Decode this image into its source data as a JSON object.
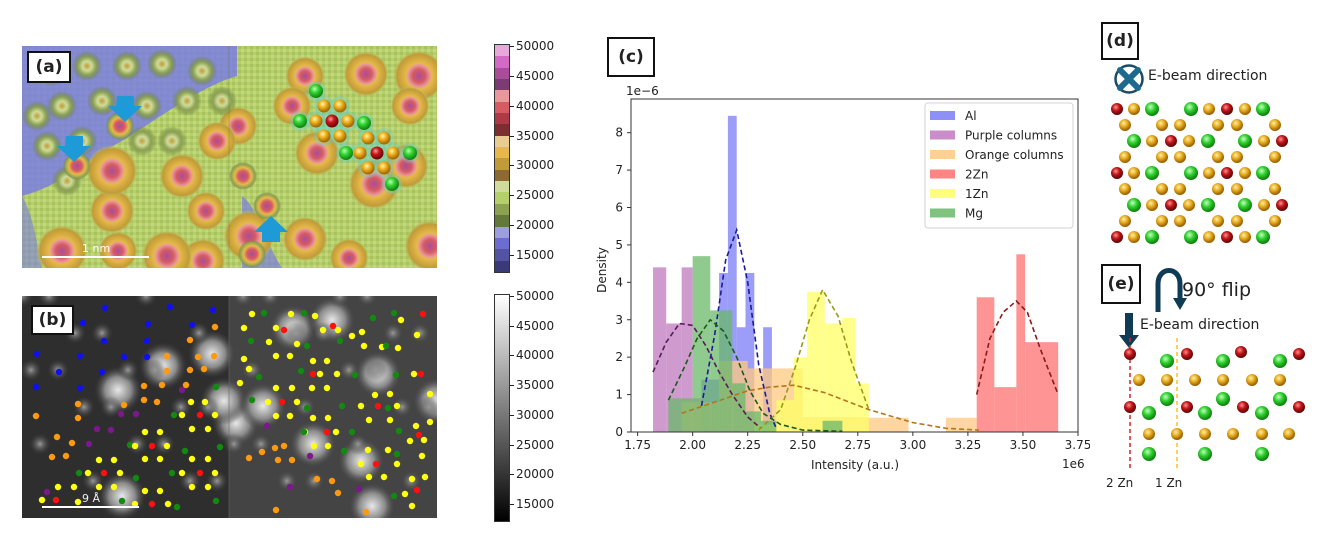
{
  "panels": {
    "a": {
      "label": "(a)",
      "scalebar": "1 nm",
      "colorbar_ticks": [
        "50000",
        "45000",
        "40000",
        "35000",
        "30000",
        "25000",
        "20000",
        "15000"
      ],
      "colormap": [
        "#e7a9d9",
        "#d36bc6",
        "#a94c9a",
        "#7b3b73",
        "#e8979b",
        "#d65b62",
        "#ad3a44",
        "#7d2e30",
        "#e8cc91",
        "#e7b94a",
        "#c09b37",
        "#8c6a32",
        "#cfdc9b",
        "#b5cf6b",
        "#8ca252",
        "#637939",
        "#9c9ede",
        "#6b6ecf",
        "#5254a3",
        "#393b79"
      ]
    },
    "b": {
      "label": "(b)",
      "scalebar": "9 Å",
      "colorbar_ticks": [
        "50000",
        "45000",
        "40000",
        "35000",
        "30000",
        "25000",
        "20000",
        "15000"
      ]
    },
    "c": {
      "label": "(c)"
    },
    "d": {
      "label": "(d)",
      "beam_label": "E-beam direction"
    },
    "e": {
      "label": "(e)",
      "flip_label": "90° flip",
      "beam_label": "E-beam direction",
      "line_labels": [
        "2 Zn",
        "1 Zn"
      ]
    }
  },
  "chart_data": {
    "type": "bar",
    "title": "",
    "xlabel": "Intensity (a.u.)",
    "ylabel": "Density",
    "x_multiplier": "1e6",
    "y_multiplier": "1e−6",
    "xlim": [
      1.72,
      3.75
    ],
    "ylim": [
      0,
      8.9
    ],
    "xticks": [
      "1.75",
      "2.00",
      "2.25",
      "2.50",
      "2.75",
      "3.00",
      "3.25",
      "3.50",
      "3.75"
    ],
    "yticks": [
      "0",
      "1",
      "2",
      "3",
      "4",
      "5",
      "6",
      "7",
      "8"
    ],
    "legend_position": "top-right",
    "series": [
      {
        "name": "Al",
        "color": "#7b7bf7",
        "fit_color": "#1a1aa0",
        "bins": [
          [
            2.04,
            2.12,
            1.4
          ],
          [
            2.12,
            2.16,
            4.25
          ],
          [
            2.16,
            2.2,
            8.45
          ],
          [
            2.2,
            2.24,
            2.8
          ],
          [
            2.24,
            2.28,
            4.25
          ],
          [
            2.32,
            2.36,
            2.8
          ]
        ],
        "fit": [
          [
            2.04,
            0.7
          ],
          [
            2.1,
            2.6
          ],
          [
            2.15,
            4.6
          ],
          [
            2.2,
            5.4
          ],
          [
            2.25,
            4.0
          ],
          [
            2.3,
            1.8
          ],
          [
            2.35,
            0.5
          ],
          [
            2.38,
            0.1
          ]
        ]
      },
      {
        "name": "Purple columns",
        "color": "#bf7abf",
        "fit_color": "#5a1a5a",
        "bins": [
          [
            1.82,
            1.88,
            4.4
          ],
          [
            1.88,
            1.95,
            2.9
          ],
          [
            1.95,
            2.0,
            4.4
          ],
          [
            2.0,
            2.05,
            0.9
          ]
        ],
        "fit": [
          [
            1.82,
            1.6
          ],
          [
            1.88,
            2.4
          ],
          [
            1.94,
            2.9
          ],
          [
            2.0,
            2.85
          ],
          [
            2.06,
            2.3
          ],
          [
            2.12,
            1.6
          ],
          [
            2.18,
            1.0
          ],
          [
            2.25,
            0.4
          ],
          [
            2.31,
            0.1
          ]
        ]
      },
      {
        "name": "Orange columns",
        "color": "#ffc880",
        "fit_color": "#b8741a",
        "bins": [
          [
            1.95,
            2.12,
            0.8
          ],
          [
            2.12,
            2.25,
            1.9
          ],
          [
            2.25,
            2.5,
            1.7
          ],
          [
            2.5,
            2.8,
            0.4
          ],
          [
            2.8,
            2.98,
            0.38
          ],
          [
            3.15,
            3.29,
            0.38
          ]
        ],
        "fit": [
          [
            1.95,
            0.5
          ],
          [
            2.1,
            0.8
          ],
          [
            2.25,
            1.1
          ],
          [
            2.35,
            1.2
          ],
          [
            2.46,
            1.25
          ],
          [
            2.6,
            1.05
          ],
          [
            2.8,
            0.6
          ],
          [
            3.0,
            0.25
          ],
          [
            3.15,
            0.1
          ],
          [
            3.3,
            0.05
          ]
        ]
      },
      {
        "name": "2Zn",
        "color": "#ff7070",
        "fit_color": "#8b1a1a",
        "bins": [
          [
            3.29,
            3.37,
            3.6
          ],
          [
            3.37,
            3.47,
            1.2
          ],
          [
            3.47,
            3.51,
            4.75
          ],
          [
            3.51,
            3.66,
            2.4
          ]
        ],
        "fit": [
          [
            3.29,
            1.0
          ],
          [
            3.35,
            2.5
          ],
          [
            3.41,
            3.2
          ],
          [
            3.47,
            3.5
          ],
          [
            3.52,
            3.2
          ],
          [
            3.58,
            2.2
          ],
          [
            3.66,
            1.0
          ]
        ]
      },
      {
        "name": "1Zn",
        "color": "#ffff66",
        "fit_color": "#9a9a18",
        "bins": [
          [
            2.28,
            2.38,
            0.2
          ],
          [
            2.38,
            2.46,
            0.85
          ],
          [
            2.46,
            2.52,
            2.0
          ],
          [
            2.52,
            2.6,
            3.75
          ],
          [
            2.6,
            2.68,
            2.9
          ],
          [
            2.68,
            2.74,
            3.05
          ],
          [
            2.74,
            2.8,
            1.3
          ]
        ],
        "fit": [
          [
            2.3,
            0.05
          ],
          [
            2.4,
            0.6
          ],
          [
            2.47,
            1.8
          ],
          [
            2.53,
            3.0
          ],
          [
            2.59,
            3.8
          ],
          [
            2.66,
            3.1
          ],
          [
            2.72,
            1.9
          ],
          [
            2.8,
            0.6
          ]
        ]
      },
      {
        "name": "Mg",
        "color": "#6ab86a",
        "fit_color": "#1a5a1a",
        "bins": [
          [
            1.89,
            2.0,
            0.9
          ],
          [
            2.0,
            2.08,
            4.7
          ],
          [
            2.08,
            2.12,
            3.25
          ],
          [
            2.12,
            2.18,
            3.25
          ],
          [
            2.18,
            2.24,
            1.3
          ],
          [
            2.24,
            2.31,
            0.55
          ],
          [
            2.31,
            2.38,
            0.3
          ],
          [
            2.59,
            2.68,
            0.3
          ]
        ],
        "fit": [
          [
            1.89,
            0.85
          ],
          [
            1.96,
            1.7
          ],
          [
            2.02,
            2.5
          ],
          [
            2.08,
            3.0
          ],
          [
            2.14,
            2.7
          ],
          [
            2.2,
            2.0
          ],
          [
            2.26,
            1.1
          ],
          [
            2.32,
            0.5
          ],
          [
            2.4,
            0.2
          ],
          [
            2.5,
            0.05
          ],
          [
            2.68,
            0.02
          ]
        ]
      }
    ]
  }
}
